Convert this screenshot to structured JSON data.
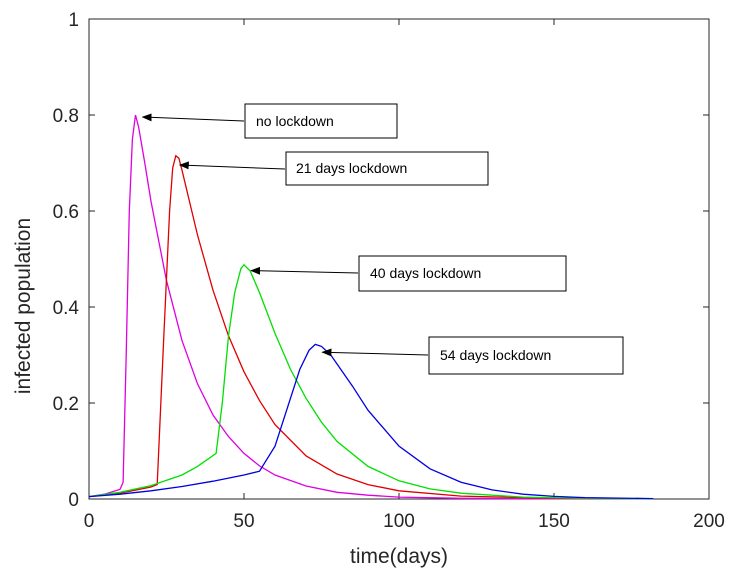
{
  "chart_data": {
    "type": "line",
    "xlabel": "time(days)",
    "ylabel": "infected population",
    "xlim": [
      0,
      200
    ],
    "ylim": [
      0,
      1
    ],
    "xticks": [
      "0",
      "50",
      "100",
      "150",
      "200"
    ],
    "yticks": [
      "0",
      "0.2",
      "0.4",
      "0.6",
      "0.8",
      "1"
    ],
    "grid": false,
    "series": [
      {
        "color": "#e000e0",
        "points": [
          [
            0,
            0.005
          ],
          [
            5,
            0.01
          ],
          [
            10,
            0.02
          ],
          [
            11,
            0.035
          ],
          [
            12,
            0.3
          ],
          [
            13,
            0.6
          ],
          [
            14,
            0.75
          ],
          [
            15,
            0.8
          ],
          [
            16,
            0.775
          ],
          [
            18,
            0.7
          ],
          [
            20,
            0.62
          ],
          [
            25,
            0.455
          ],
          [
            30,
            0.33
          ],
          [
            35,
            0.24
          ],
          [
            40,
            0.175
          ],
          [
            45,
            0.13
          ],
          [
            50,
            0.095
          ],
          [
            55,
            0.069
          ],
          [
            60,
            0.05
          ],
          [
            70,
            0.027
          ],
          [
            80,
            0.014
          ],
          [
            90,
            0.008
          ],
          [
            100,
            0.004
          ],
          [
            120,
            0.0015
          ],
          [
            150,
            0.0005
          ],
          [
            182,
            0.0002
          ]
        ]
      },
      {
        "color": "#e00000",
        "points": [
          [
            0,
            0.005
          ],
          [
            10,
            0.012
          ],
          [
            20,
            0.025
          ],
          [
            22,
            0.03
          ],
          [
            24,
            0.32
          ],
          [
            26,
            0.6
          ],
          [
            27,
            0.69
          ],
          [
            28,
            0.715
          ],
          [
            29,
            0.71
          ],
          [
            30,
            0.685
          ],
          [
            35,
            0.55
          ],
          [
            40,
            0.435
          ],
          [
            45,
            0.34
          ],
          [
            50,
            0.265
          ],
          [
            55,
            0.205
          ],
          [
            60,
            0.155
          ],
          [
            70,
            0.09
          ],
          [
            80,
            0.052
          ],
          [
            90,
            0.03
          ],
          [
            100,
            0.017
          ],
          [
            120,
            0.006
          ],
          [
            150,
            0.0015
          ],
          [
            182,
            0.0004
          ]
        ]
      },
      {
        "color": "#00e000",
        "points": [
          [
            0,
            0.005
          ],
          [
            10,
            0.014
          ],
          [
            20,
            0.028
          ],
          [
            30,
            0.05
          ],
          [
            35,
            0.068
          ],
          [
            41,
            0.095
          ],
          [
            43,
            0.2
          ],
          [
            45,
            0.34
          ],
          [
            47,
            0.43
          ],
          [
            49,
            0.48
          ],
          [
            50,
            0.488
          ],
          [
            52,
            0.475
          ],
          [
            55,
            0.43
          ],
          [
            60,
            0.345
          ],
          [
            65,
            0.27
          ],
          [
            70,
            0.21
          ],
          [
            75,
            0.16
          ],
          [
            80,
            0.12
          ],
          [
            90,
            0.068
          ],
          [
            100,
            0.038
          ],
          [
            110,
            0.021
          ],
          [
            120,
            0.012
          ],
          [
            140,
            0.004
          ],
          [
            160,
            0.0013
          ],
          [
            182,
            0.0004
          ]
        ]
      },
      {
        "color": "#0000e0",
        "points": [
          [
            0,
            0.005
          ],
          [
            10,
            0.01
          ],
          [
            20,
            0.017
          ],
          [
            30,
            0.026
          ],
          [
            40,
            0.037
          ],
          [
            50,
            0.05
          ],
          [
            55,
            0.058
          ],
          [
            60,
            0.11
          ],
          [
            64,
            0.19
          ],
          [
            68,
            0.27
          ],
          [
            71,
            0.31
          ],
          [
            73,
            0.322
          ],
          [
            75,
            0.318
          ],
          [
            78,
            0.3
          ],
          [
            85,
            0.235
          ],
          [
            90,
            0.185
          ],
          [
            100,
            0.11
          ],
          [
            110,
            0.063
          ],
          [
            120,
            0.035
          ],
          [
            130,
            0.019
          ],
          [
            140,
            0.01
          ],
          [
            150,
            0.0055
          ],
          [
            160,
            0.003
          ],
          [
            182,
            0.0008
          ]
        ]
      }
    ],
    "annotations": [
      {
        "text": "no lockdown",
        "x": 16,
        "y": 0.8
      },
      {
        "text": "21 days lockdown",
        "x": 28,
        "y": 0.7
      },
      {
        "text": "40 days lockdown",
        "x": 51,
        "y": 0.48
      },
      {
        "text": "54 days lockdown",
        "x": 74,
        "y": 0.31
      }
    ]
  }
}
